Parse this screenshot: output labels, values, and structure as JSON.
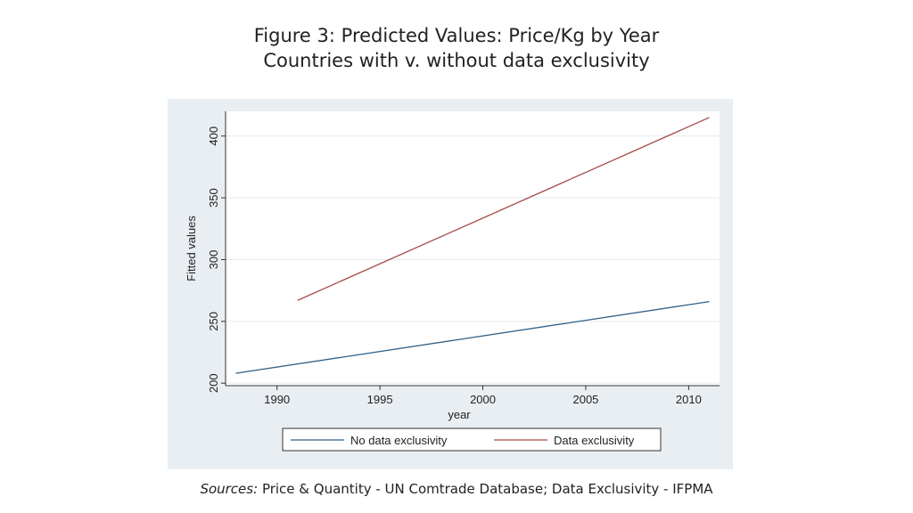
{
  "figure": {
    "title_prefix": "Figure 3:",
    "title": "Predicted Values: Price/Kg by Year",
    "subtitle": "Countries with v. without data exclusivity"
  },
  "sources": {
    "label": "Sources:",
    "text": "Price & Quantity - UN Comtrade Database; Data Exclusivity - IFPMA"
  },
  "colors": {
    "plot_background": "#e9eef3",
    "no_exclusivity": "#2e5f87",
    "exclusivity": "#a54b4b"
  },
  "chart_data": {
    "type": "line",
    "xlabel": "year",
    "ylabel": "Fitted values",
    "xlim": [
      1987.5,
      2011.5
    ],
    "ylim": [
      198,
      420
    ],
    "xticks": [
      1990,
      1995,
      2000,
      2005,
      2010
    ],
    "yticks": [
      200,
      250,
      300,
      350,
      400
    ],
    "grid": true,
    "legend_position": "bottom",
    "series": [
      {
        "name": "No data exclusivity",
        "color": "#2e5f87",
        "x": [
          1988,
          2011
        ],
        "y": [
          208,
          266
        ]
      },
      {
        "name": "Data exclusivity",
        "color": "#a54b4b",
        "x": [
          1991,
          2011
        ],
        "y": [
          267,
          415
        ]
      }
    ]
  }
}
